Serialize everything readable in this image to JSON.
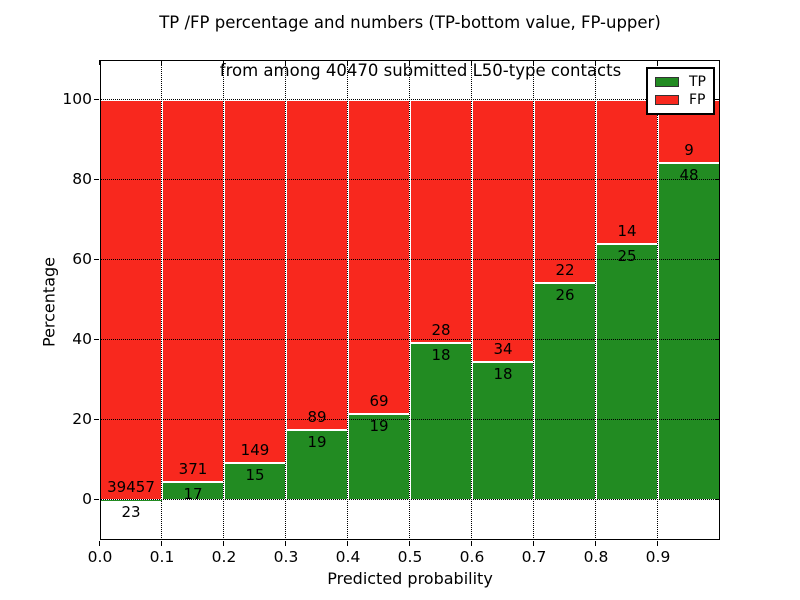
{
  "chart_data": {
    "type": "bar",
    "stacking": "percent",
    "title_line1": "TP /FP percentage and numbers (TP-bottom value, FP-upper)",
    "title_line2": "from among 40470 submitted L50-type contacts",
    "xlabel": "Predicted probability",
    "ylabel": "Percentage",
    "xlim": [
      0.0,
      1.0
    ],
    "ylim": [
      -10,
      110
    ],
    "grid": true,
    "x_tick_values": [
      0.0,
      0.1,
      0.2,
      0.3,
      0.4,
      0.5,
      0.6,
      0.7,
      0.8,
      0.9
    ],
    "x_tick_labels": [
      "0.0",
      "0.1",
      "0.2",
      "0.3",
      "0.4",
      "0.5",
      "0.6",
      "0.7",
      "0.8",
      "0.9"
    ],
    "y_ticks": [
      0,
      20,
      40,
      60,
      80,
      100
    ],
    "series": [
      {
        "name": "TP",
        "color": "#228b22"
      },
      {
        "name": "FP",
        "color": "#f8281e"
      }
    ],
    "bins": [
      {
        "x_start": 0.0,
        "x_end": 0.1,
        "tp": 23,
        "fp": 39457,
        "tp_pct": 0.06,
        "fp_pct": 99.94
      },
      {
        "x_start": 0.1,
        "x_end": 0.2,
        "tp": 17,
        "fp": 371,
        "tp_pct": 4.38,
        "fp_pct": 95.62
      },
      {
        "x_start": 0.2,
        "x_end": 0.3,
        "tp": 15,
        "fp": 149,
        "tp_pct": 9.15,
        "fp_pct": 90.85
      },
      {
        "x_start": 0.3,
        "x_end": 0.4,
        "tp": 19,
        "fp": 89,
        "tp_pct": 17.59,
        "fp_pct": 82.41
      },
      {
        "x_start": 0.4,
        "x_end": 0.5,
        "tp": 19,
        "fp": 69,
        "tp_pct": 21.59,
        "fp_pct": 78.41
      },
      {
        "x_start": 0.5,
        "x_end": 0.6,
        "tp": 18,
        "fp": 28,
        "tp_pct": 39.13,
        "fp_pct": 60.87
      },
      {
        "x_start": 0.6,
        "x_end": 0.7,
        "tp": 18,
        "fp": 34,
        "tp_pct": 34.62,
        "fp_pct": 65.38
      },
      {
        "x_start": 0.7,
        "x_end": 0.8,
        "tp": 26,
        "fp": 22,
        "tp_pct": 54.17,
        "fp_pct": 45.83
      },
      {
        "x_start": 0.8,
        "x_end": 0.9,
        "tp": 25,
        "fp": 14,
        "tp_pct": 64.1,
        "fp_pct": 35.9
      },
      {
        "x_start": 0.9,
        "x_end": 1.0,
        "tp": 48,
        "fp": 9,
        "tp_pct": 84.21,
        "fp_pct": 15.79
      }
    ],
    "legend": {
      "position": "upper right",
      "entries": [
        {
          "label": "TP",
          "color": "#228b22"
        },
        {
          "label": "FP",
          "color": "#f8281e"
        }
      ]
    }
  }
}
